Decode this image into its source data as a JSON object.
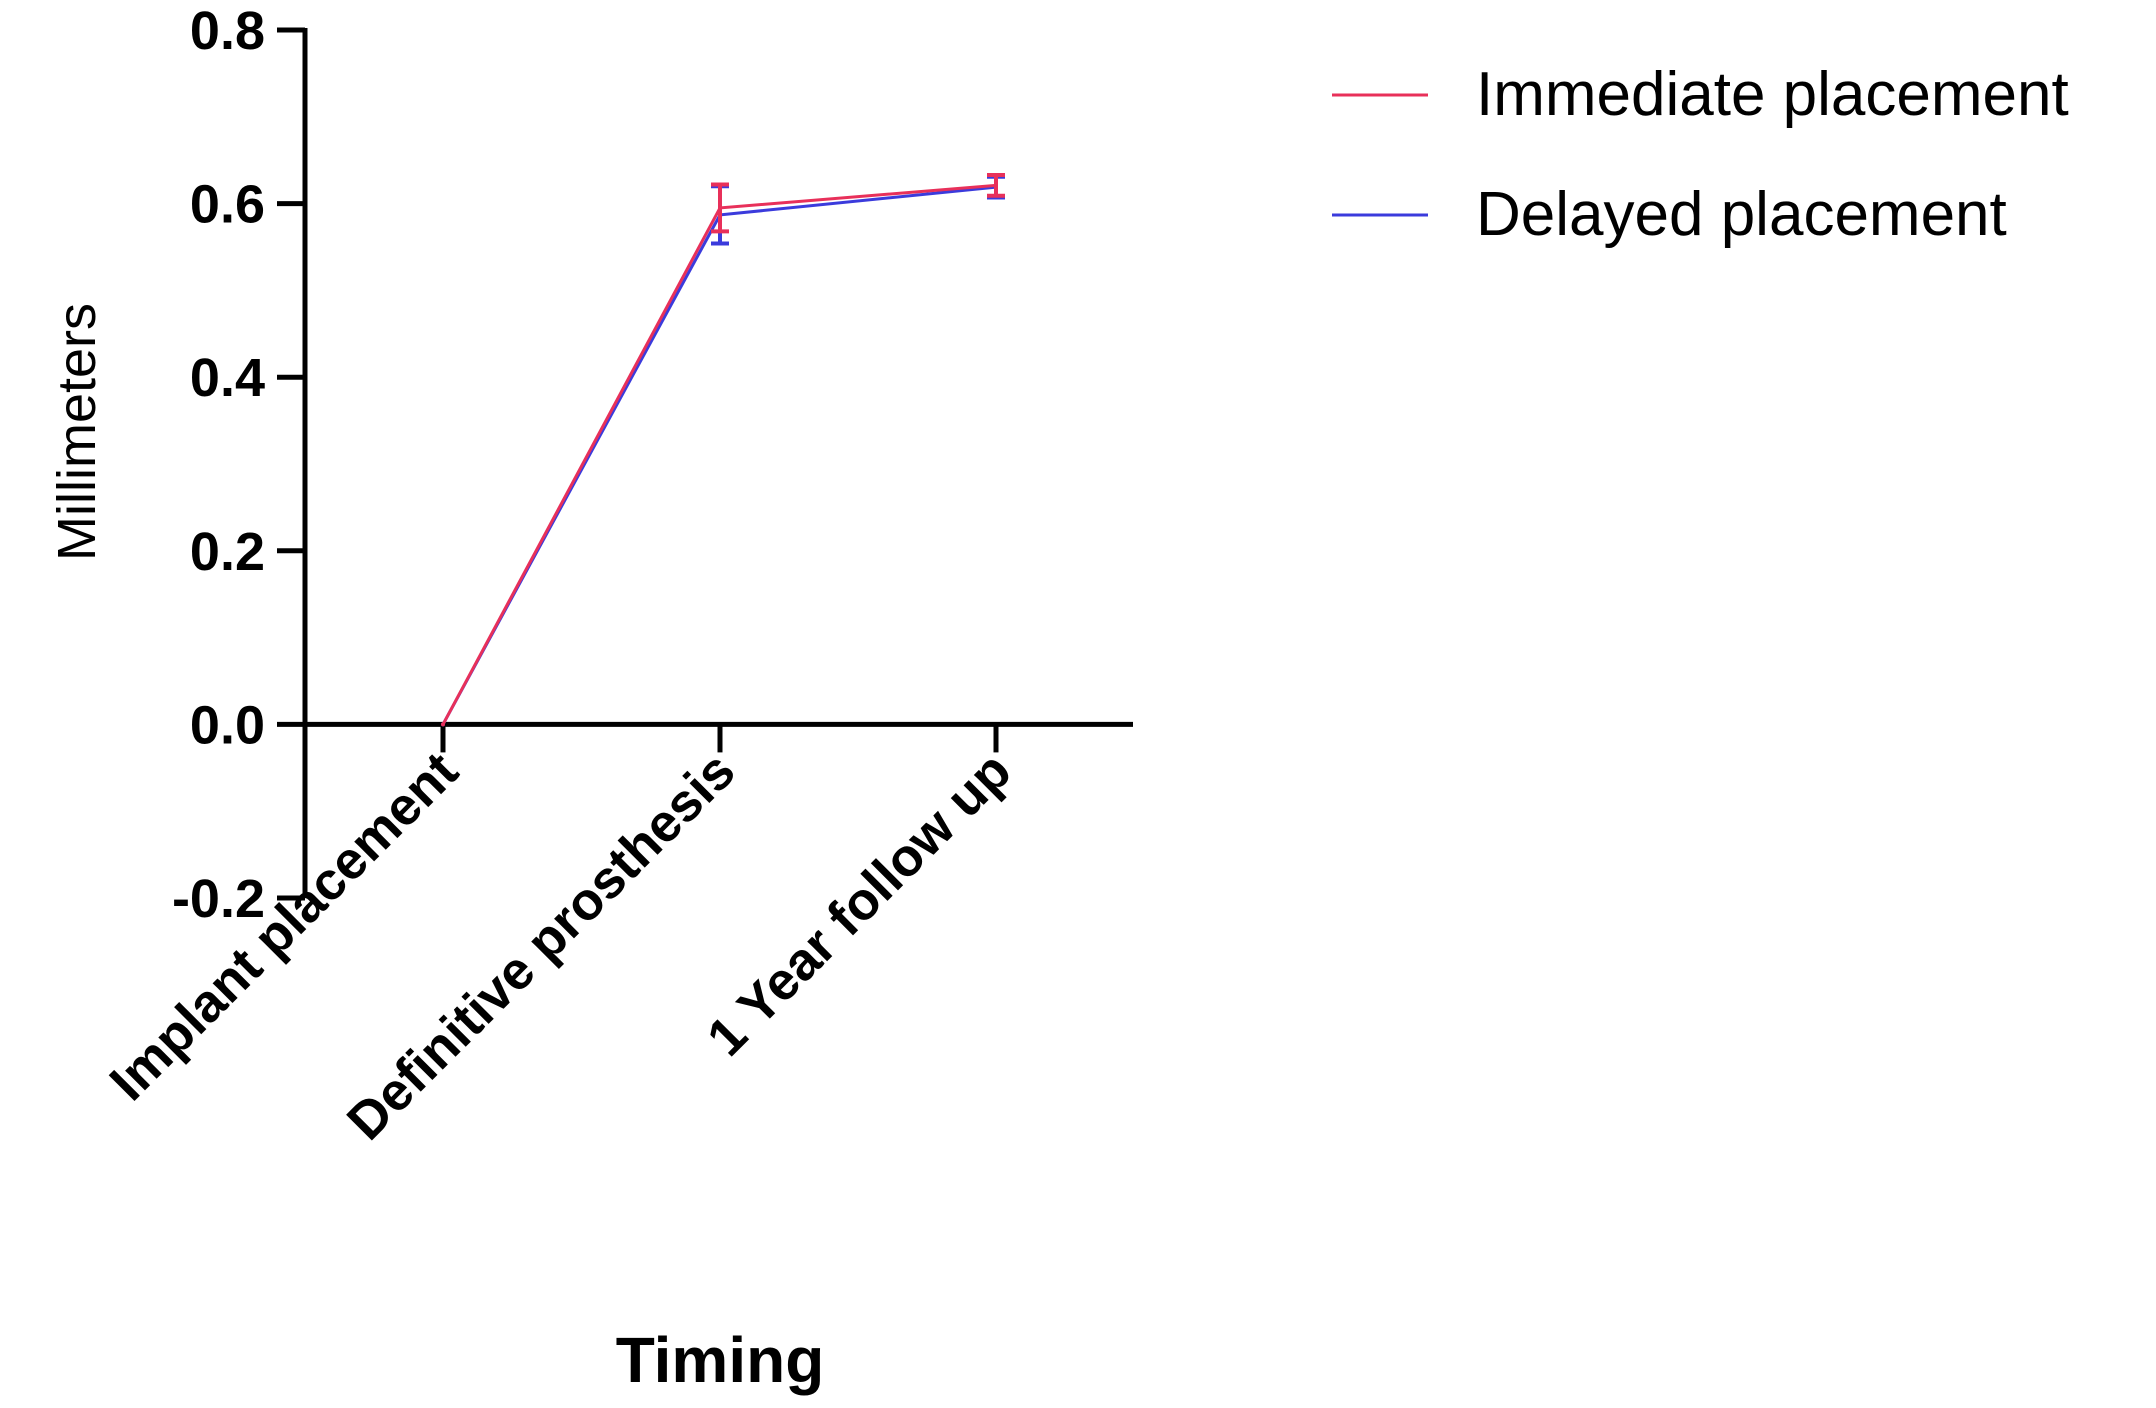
{
  "chart_data": {
    "type": "line",
    "title": "",
    "xlabel": "Timing",
    "ylabel": "Millimeters",
    "categories": [
      "Implant placement",
      "Definitive prosthesis",
      "1 Year follow up"
    ],
    "ylim": [
      -0.2,
      0.8
    ],
    "yticks": [
      "-0.2",
      "0.0",
      "0.2",
      "0.4",
      "0.6",
      "0.8"
    ],
    "grid": false,
    "legend_position": "top-right",
    "series": [
      {
        "name": "Immediate placement",
        "color": "#e8305a",
        "values": [
          0.0,
          0.595,
          0.621
        ],
        "error": [
          0.0,
          0.027,
          0.012
        ]
      },
      {
        "name": "Delayed placement",
        "color": "#3b3bdc",
        "values": [
          0.0,
          0.587,
          0.619
        ],
        "error": [
          0.0,
          0.033,
          0.012
        ]
      }
    ]
  }
}
